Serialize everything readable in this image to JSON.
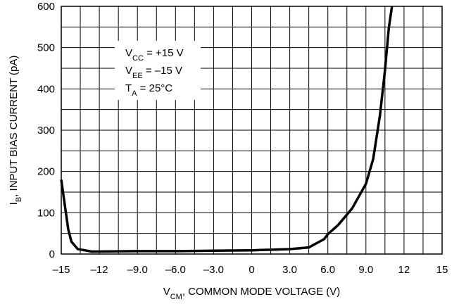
{
  "chart_data": {
    "type": "line",
    "y_label": {
      "main": "I",
      "sub": "B",
      "rest": ", INPUT BIAS CURRENT (pA)"
    },
    "x_label": {
      "main": "V",
      "sub": "CM",
      "rest": ", COMMON MODE VOLTAGE (V)"
    },
    "annotations": [
      {
        "main": "V",
        "sub": "CC",
        "rest": " = +15 V"
      },
      {
        "main": "V",
        "sub": "EE",
        "rest": " = –15 V"
      },
      {
        "main": "T",
        "sub": "A",
        "rest": " = 25°C"
      }
    ],
    "xlim": [
      -15,
      15
    ],
    "ylim": [
      0,
      600
    ],
    "xticks": [
      {
        "value": -15,
        "label": "–15"
      },
      {
        "value": -12,
        "label": "–12"
      },
      {
        "value": -9,
        "label": "–9.0"
      },
      {
        "value": -6,
        "label": "–6.0"
      },
      {
        "value": -3,
        "label": "–3.0"
      },
      0,
      {
        "value": 3,
        "label": "3.0"
      },
      {
        "value": 6,
        "label": "6.0"
      },
      {
        "value": 9,
        "label": "9.0"
      },
      12,
      15
    ],
    "x_minor_ticks": [
      -13.5,
      -10.5,
      -7.5,
      -4.5,
      -1.5,
      1.5,
      4.5,
      7.5,
      10.5,
      13.5
    ],
    "yticks": [
      0,
      100,
      200,
      300,
      400,
      500,
      600
    ],
    "y_minor_ticks": [
      50,
      150,
      250,
      350,
      450,
      550
    ],
    "grid": true,
    "series": [
      {
        "color": "#000000",
        "x": [
          -15,
          -14.45,
          -14.2,
          -13.7,
          -12.6,
          -9,
          -6,
          -3,
          0,
          3,
          4.5,
          5.7,
          6,
          6.8,
          7.9,
          9,
          9.57,
          10.1,
          10.5,
          10.8,
          11.05
        ],
        "values": [
          180,
          60,
          30,
          12,
          6,
          7,
          7,
          8,
          9,
          12,
          16,
          36,
          48,
          70,
          110,
          170,
          230,
          335,
          445,
          547,
          600
        ]
      }
    ]
  }
}
